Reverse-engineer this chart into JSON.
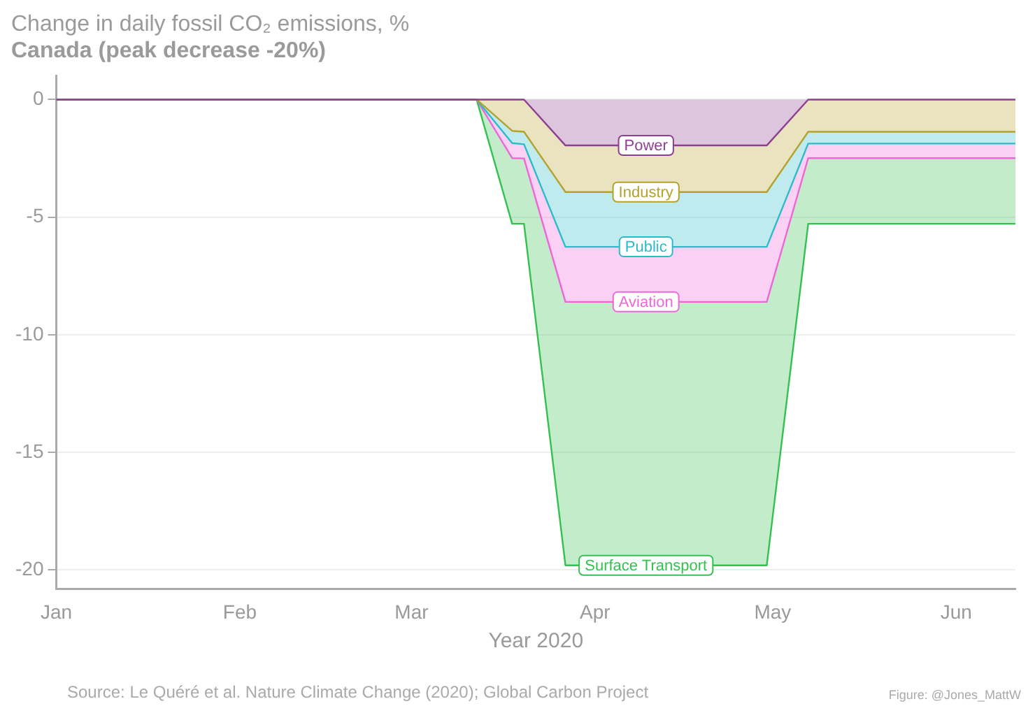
{
  "chart_data": {
    "type": "area",
    "title": "Change in daily fossil CO₂ emissions, %",
    "subtitle": "Canada (peak decrease -20%)",
    "xlabel": "Year 2020",
    "x": [
      "2020-01-01",
      "2020-03-12",
      "2020-03-18",
      "2020-03-20",
      "2020-03-27",
      "2020-04-30",
      "2020-05-07",
      "2020-06-11"
    ],
    "stacked": true,
    "series": [
      {
        "name": "Power",
        "color": "#8e3f91",
        "values": [
          0,
          0,
          0,
          0,
          -1.95,
          -1.95,
          0,
          0
        ]
      },
      {
        "name": "Industry",
        "color": "#b5a22c",
        "values": [
          0,
          0,
          -1.33,
          -1.37,
          -1.98,
          -1.98,
          -1.37,
          -1.37
        ]
      },
      {
        "name": "Public",
        "color": "#2cbcc8",
        "values": [
          0,
          0,
          -0.52,
          -0.53,
          -2.33,
          -2.33,
          -0.5,
          -0.5
        ]
      },
      {
        "name": "Aviation",
        "color": "#ef66d9",
        "values": [
          0,
          0,
          -0.64,
          -0.6,
          -2.34,
          -2.34,
          -0.62,
          -0.62
        ]
      },
      {
        "name": "Surface Transport",
        "color": "#34c150",
        "values": [
          0,
          0,
          -2.79,
          -2.78,
          -11.2,
          -11.2,
          -2.79,
          -2.79
        ]
      }
    ],
    "xlim": [
      "2020-01-01",
      "2020-06-11"
    ],
    "xticks": [
      {
        "value": "2020-01-01",
        "label": "Jan"
      },
      {
        "value": "2020-02-01",
        "label": "Feb"
      },
      {
        "value": "2020-03-01",
        "label": "Mar"
      },
      {
        "value": "2020-04-01",
        "label": "Apr"
      },
      {
        "value": "2020-05-01",
        "label": "May"
      },
      {
        "value": "2020-06-01",
        "label": "Jun"
      }
    ],
    "ylim": [
      -20.8,
      1
    ],
    "yticks": [
      0,
      -5,
      -10,
      -15,
      -20
    ],
    "grid": "y",
    "legend": false,
    "annotations": [
      "Source: Le Quéré et al. Nature Climate Change (2020); Global Carbon Project",
      "Figure: @Jones_MattW"
    ]
  }
}
